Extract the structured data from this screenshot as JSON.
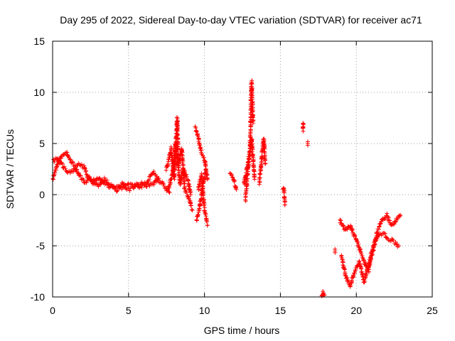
{
  "chart_data": {
    "type": "scatter",
    "title": "Day 295 of 2022, Sidereal Day-to-day VTEC variation (SDTVAR) for receiver ac71",
    "xlabel": "GPS time / hours",
    "ylabel": "SDTVAR / TECUs",
    "xlim": [
      0,
      25
    ],
    "ylim": [
      -10,
      15
    ],
    "xticks": [
      0,
      5,
      10,
      15,
      20,
      25
    ],
    "yticks": [
      -10,
      -5,
      0,
      5,
      10,
      15
    ],
    "xtick_labels": [
      "0",
      "5",
      "10",
      "15",
      "20",
      "25"
    ],
    "ytick_labels": [
      "-10",
      "-5",
      "0",
      "5",
      "10",
      "15"
    ],
    "grid": true,
    "marker": "+",
    "color": "#ff0000",
    "series": [
      {
        "name": "SDTVAR",
        "segments": [
          {
            "x": [
              0.0,
              0.3,
              0.6,
              0.9,
              1.2,
              1.5,
              1.8,
              2.1,
              2.4,
              2.7,
              3.0,
              3.4,
              3.8,
              4.2,
              4.6,
              5.0,
              5.4,
              5.8,
              6.2,
              6.6,
              7.0,
              7.4,
              7.7
            ],
            "y": [
              1.5,
              3.0,
              3.8,
              4.1,
              3.2,
              2.8,
              3.0,
              2.6,
              1.6,
              1.0,
              1.6,
              1.2,
              0.7,
              0.8,
              0.6,
              0.9,
              1.0,
              0.8,
              1.2,
              2.2,
              1.4,
              0.8,
              0.2
            ]
          },
          {
            "x": [
              0.0,
              0.3,
              0.6,
              0.9,
              1.2,
              1.5,
              1.8,
              2.1,
              2.4,
              2.7,
              3.0,
              3.4,
              3.8,
              4.2,
              4.6,
              5.0,
              5.4,
              5.8,
              6.2,
              6.6,
              7.0
            ],
            "y": [
              3.2,
              3.6,
              3.0,
              2.4,
              2.2,
              2.6,
              1.8,
              1.2,
              1.6,
              1.4,
              0.8,
              1.5,
              1.0,
              0.4,
              1.1,
              0.5,
              0.8,
              1.2,
              0.9,
              1.0,
              1.6
            ]
          },
          {
            "x": [
              7.5,
              7.8,
              8.0,
              8.2,
              8.3,
              8.5,
              8.7,
              9.0,
              9.2
            ],
            "y": [
              2.5,
              4.5,
              1.5,
              7.5,
              3.0,
              4.5,
              0.5,
              -0.5,
              -1.5
            ]
          },
          {
            "x": [
              7.6,
              7.9,
              8.1,
              8.4,
              8.6,
              8.9,
              9.1
            ],
            "y": [
              0.5,
              2.0,
              5.0,
              1.0,
              2.5,
              1.5,
              0.0
            ]
          },
          {
            "x": [
              9.4,
              9.6,
              9.8,
              10.0,
              10.2
            ],
            "y": [
              6.5,
              5.5,
              4.0,
              3.5,
              1.5
            ]
          },
          {
            "x": [
              9.5,
              9.7,
              9.9,
              10.1
            ],
            "y": [
              -2.5,
              -1.0,
              1.0,
              2.5
            ]
          },
          {
            "x": [
              9.6,
              9.8,
              10.0,
              10.2
            ],
            "y": [
              0.5,
              2.0,
              -1.5,
              -3.0
            ]
          },
          {
            "x": [
              11.7,
              11.9,
              12.1
            ],
            "y": [
              2.0,
              1.5,
              0.5
            ]
          },
          {
            "x": [
              12.6,
              12.8,
              13.0,
              13.1,
              13.2
            ],
            "y": [
              1.0,
              2.5,
              4.5,
              11.0,
              7.0
            ]
          },
          {
            "x": [
              12.7,
              12.9,
              13.1,
              13.3
            ],
            "y": [
              -0.5,
              3.0,
              5.5,
              1.5
            ]
          },
          {
            "x": [
              13.6,
              13.7,
              13.8,
              13.9,
              14.0
            ],
            "y": [
              1.0,
              2.5,
              4.0,
              5.5,
              3.0
            ]
          },
          {
            "x": [
              15.2,
              15.3
            ],
            "y": [
              0.8,
              -1.0
            ]
          },
          {
            "x": [
              16.5,
              16.5
            ],
            "y": [
              7.0,
              6.2
            ]
          },
          {
            "x": [
              16.8
            ],
            "y": [
              5.0
            ]
          },
          {
            "x": [
              17.7,
              17.8,
              17.9
            ],
            "y": [
              -10.0,
              -9.5,
              -9.8
            ]
          },
          {
            "x": [
              18.6
            ],
            "y": [
              -5.5
            ]
          },
          {
            "x": [
              18.9,
              19.3,
              19.6,
              19.8,
              20.0,
              20.4,
              20.8,
              21.0,
              21.4,
              21.8,
              22.0,
              22.4,
              22.8
            ],
            "y": [
              -2.5,
              -3.5,
              -3.0,
              -3.8,
              -4.5,
              -6.0,
              -7.5,
              -5.5,
              -4.0,
              -3.8,
              -4.2,
              -4.5,
              -5.0
            ]
          },
          {
            "x": [
              19.0,
              19.3,
              19.6,
              19.9,
              20.2,
              20.5,
              20.8,
              21.1,
              21.4,
              21.7,
              22.0,
              22.3,
              22.6,
              22.9
            ],
            "y": [
              -6.0,
              -8.0,
              -9.0,
              -7.5,
              -6.5,
              -8.5,
              -7.0,
              -5.5,
              -3.5,
              -2.5,
              -2.0,
              -3.0,
              -2.5,
              -2.0
            ]
          }
        ]
      }
    ]
  }
}
